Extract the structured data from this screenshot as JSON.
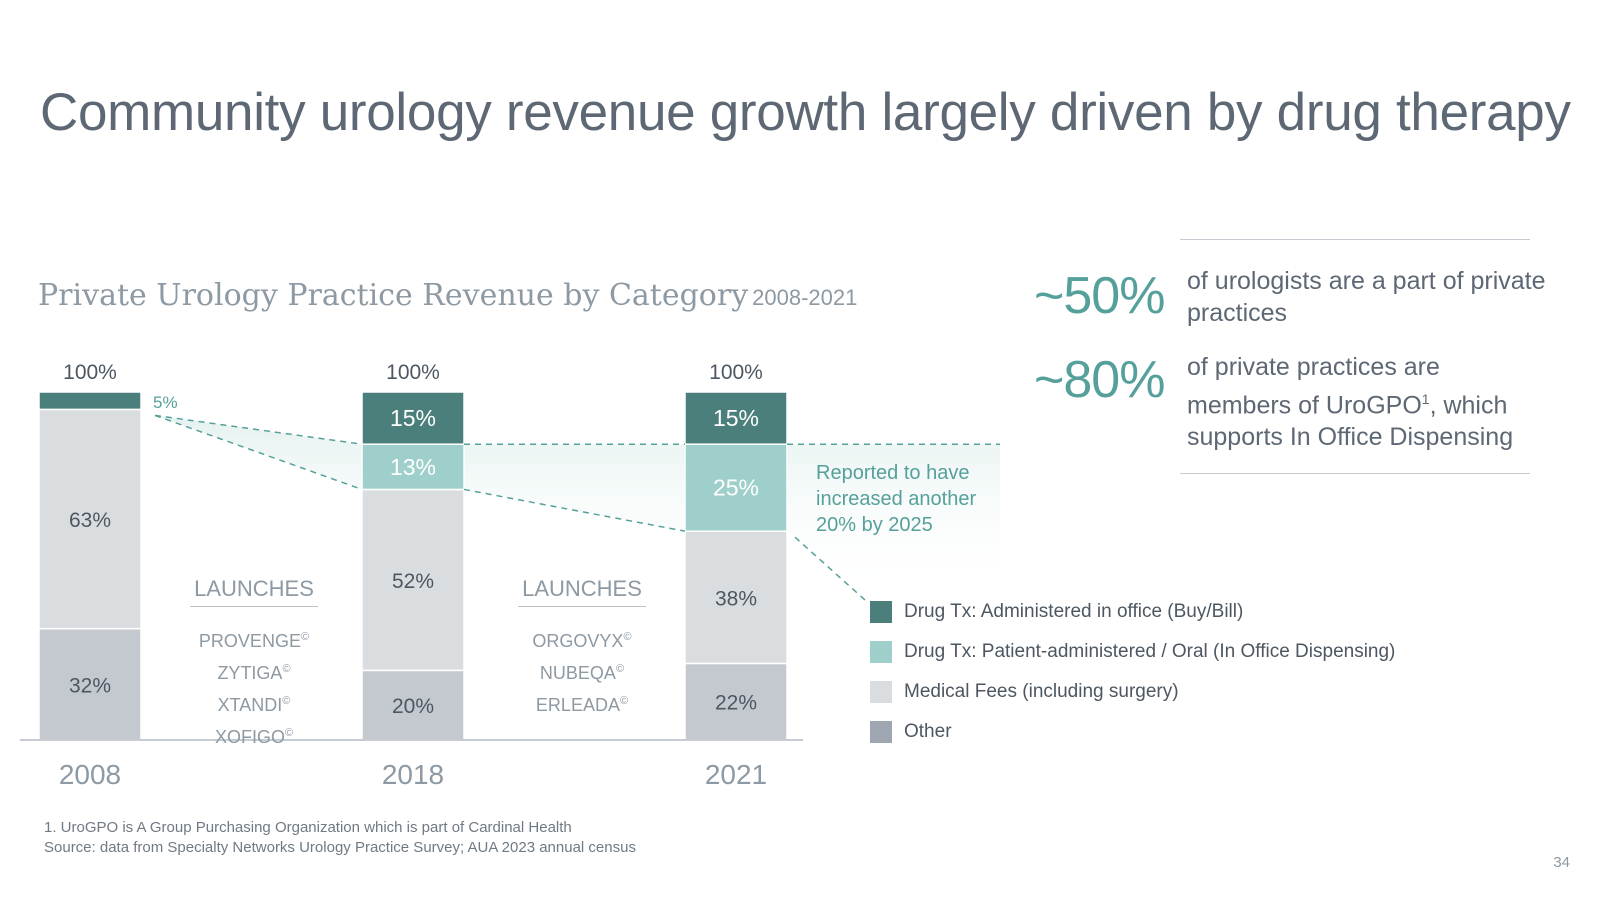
{
  "title": "Community urology revenue growth largely driven by drug therapy",
  "chart_heading": {
    "title": "Private Urology Practice Revenue by Category",
    "subtitle": "2008-2021"
  },
  "stats": [
    {
      "value": "~50%",
      "text": "of urologists are a part of private practices"
    },
    {
      "value": "~80%",
      "text": "of private practices are members of UroGPO",
      "superscript": "1",
      "text_after": ", which supports In Office Dispensing"
    }
  ],
  "chart_data": {
    "type": "bar",
    "stacked": true,
    "categories": [
      "2008",
      "2018",
      "2021"
    ],
    "totals": [
      "100%",
      "100%",
      "100%"
    ],
    "series": [
      {
        "name": "Other",
        "values": [
          32,
          20,
          22
        ],
        "labels": [
          "32%",
          "20%",
          "22%"
        ],
        "color": "#9ea7b1",
        "band": "#c3c9cf",
        "text_color": "#4d5761"
      },
      {
        "name": "Medical Fees (including surgery)",
        "values": [
          63,
          52,
          38
        ],
        "labels": [
          "63%",
          "52%",
          "38%"
        ],
        "color": "#dadde0",
        "band": "#dadde0",
        "text_color": "#4d5761"
      },
      {
        "name": "Drug Tx: Patient-administered / Oral (In Office Dispensing)",
        "values": [
          0,
          13,
          25
        ],
        "labels": [
          "",
          "13%",
          "25%"
        ],
        "color": "#9fcfca",
        "band": "#9fcfca",
        "text_color": "#ffffff"
      },
      {
        "name": "Drug Tx: Administered in office (Buy/Bill)",
        "values": [
          5,
          15,
          15
        ],
        "labels": [
          "5%",
          "15%",
          "15%"
        ],
        "color": "#4a7f7c",
        "band": "#4a7f7c",
        "text_color": "#ffffff"
      }
    ],
    "ylim": [
      0,
      100
    ],
    "legend_position": "right",
    "grid": false
  },
  "launches": [
    {
      "heading": "LAUNCHES",
      "drugs": [
        "PROVENGE",
        "ZYTIGA",
        "XTANDI",
        "XOFIGO"
      ],
      "mark": "©"
    },
    {
      "heading": "LAUNCHES",
      "drugs": [
        "ORGOVYX",
        "NUBEQA",
        "ERLEADA"
      ],
      "mark": "©"
    }
  ],
  "note": "Reported to have increased another 20% by 2025",
  "footnotes": [
    "1. UroGPO is A Group Purchasing Organization which is part of Cardinal Health",
    "Source: data from Specialty Networks Urology Practice Survey; AUA 2023 annual census"
  ],
  "page_number": "34"
}
